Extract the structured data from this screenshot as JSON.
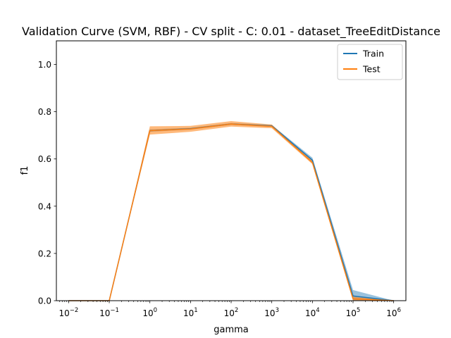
{
  "chart_data": {
    "type": "line",
    "title": "Validation Curve (SVM, RBF) - CV split - C: 0.01 - dataset_TreeEditDistance",
    "xlabel": "gamma",
    "ylabel": "f1",
    "xscale": "log",
    "xlim": [
      0.005,
      2000000
    ],
    "ylim": [
      0,
      1.1
    ],
    "grid": false,
    "legend_position": "top-right",
    "x": [
      0.01,
      0.1,
      1,
      10,
      100,
      1000,
      10000,
      100000,
      1000000
    ],
    "x_tick_values": [
      0.01,
      0.1,
      1,
      10,
      100,
      1000,
      10000,
      100000,
      1000000
    ],
    "x_tick_exponents": [
      "−2",
      "−1",
      "0",
      "1",
      "2",
      "3",
      "4",
      "5",
      "6"
    ],
    "x_tick_base": "10",
    "y_ticks": [
      "0.0",
      "0.2",
      "0.4",
      "0.6",
      "0.8",
      "1.0"
    ],
    "y_tick_values": [
      0,
      0.2,
      0.4,
      0.6,
      0.8,
      1.0
    ],
    "series": [
      {
        "name": "Train",
        "color": "#1f77b4",
        "values": [
          0.0,
          0.0,
          0.72,
          0.728,
          0.748,
          0.74,
          0.595,
          0.02,
          0.0
        ],
        "band_lower": [
          0.0,
          0.0,
          0.715,
          0.724,
          0.744,
          0.736,
          0.585,
          0.0,
          0.0
        ],
        "band_upper": [
          0.0,
          0.0,
          0.725,
          0.732,
          0.752,
          0.744,
          0.605,
          0.045,
          0.0
        ]
      },
      {
        "name": "Test",
        "color": "#ff7f0e",
        "values": [
          0.0,
          0.0,
          0.72,
          0.727,
          0.748,
          0.738,
          0.585,
          0.008,
          0.0
        ],
        "band_lower": [
          0.0,
          0.0,
          0.703,
          0.715,
          0.737,
          0.73,
          0.578,
          0.0,
          0.0
        ],
        "band_upper": [
          0.0,
          0.0,
          0.738,
          0.74,
          0.76,
          0.746,
          0.592,
          0.018,
          0.0
        ]
      }
    ]
  }
}
